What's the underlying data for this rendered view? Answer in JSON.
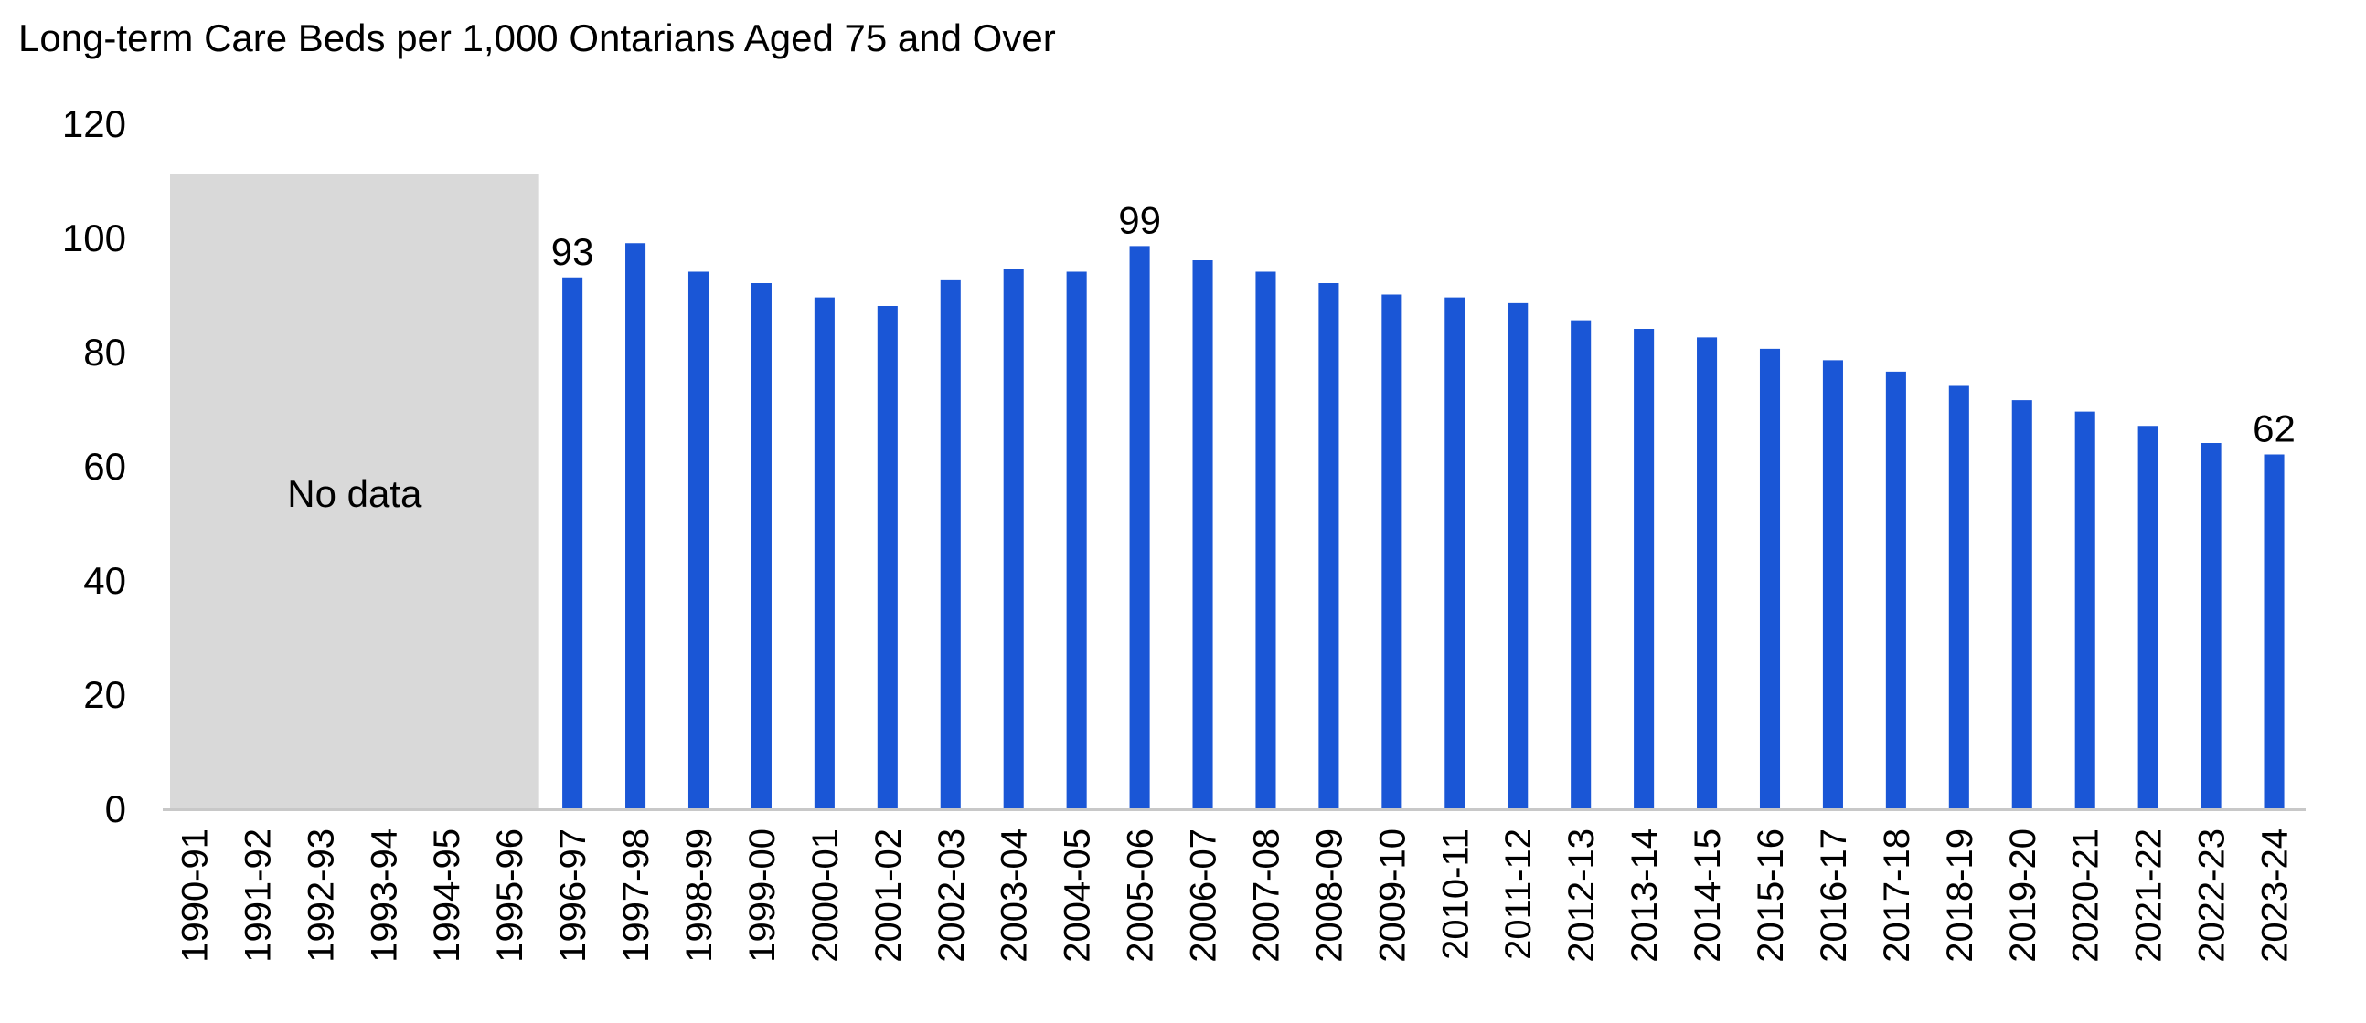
{
  "title": "Long-term Care Beds per 1,000 Ontarians Aged 75 and Over",
  "no_data_label": "No data",
  "colors": {
    "bar": "#1a56d6",
    "no_data_fill": "#d9d9d9",
    "axis": "#c8c8c8"
  },
  "chart_data": {
    "type": "bar",
    "title": "Long-term Care Beds per 1,000 Ontarians Aged 75 and Over",
    "xlabel": "",
    "ylabel": "",
    "ylim": [
      0,
      120
    ],
    "yticks": [
      0,
      20,
      40,
      60,
      80,
      100,
      120
    ],
    "grid": false,
    "categories": [
      "1990-91",
      "1991-92",
      "1992-93",
      "1993-94",
      "1994-95",
      "1995-96",
      "1996-97",
      "1997-98",
      "1998-99",
      "1999-00",
      "2000-01",
      "2001-02",
      "2002-03",
      "2003-04",
      "2004-05",
      "2005-06",
      "2006-07",
      "2007-08",
      "2008-09",
      "2009-10",
      "2010-11",
      "2011-12",
      "2012-13",
      "2013-14",
      "2014-15",
      "2015-16",
      "2016-17",
      "2017-18",
      "2018-19",
      "2019-20",
      "2020-21",
      "2021-22",
      "2022-23",
      "2023-24"
    ],
    "values": [
      null,
      null,
      null,
      null,
      null,
      null,
      93,
      99,
      94,
      92,
      89.5,
      88,
      92.5,
      94.5,
      94,
      98.5,
      96,
      94,
      92,
      90,
      89.5,
      88.5,
      85.5,
      84,
      82.5,
      80.5,
      78.5,
      76.5,
      74,
      71.5,
      69.5,
      67,
      64,
      62
    ],
    "data_labels": [
      {
        "category": "1996-97",
        "text": "93"
      },
      {
        "category": "2005-06",
        "text": "99"
      },
      {
        "category": "2023-24",
        "text": "62"
      }
    ],
    "no_data_range": [
      "1990-91",
      "1995-96"
    ]
  }
}
